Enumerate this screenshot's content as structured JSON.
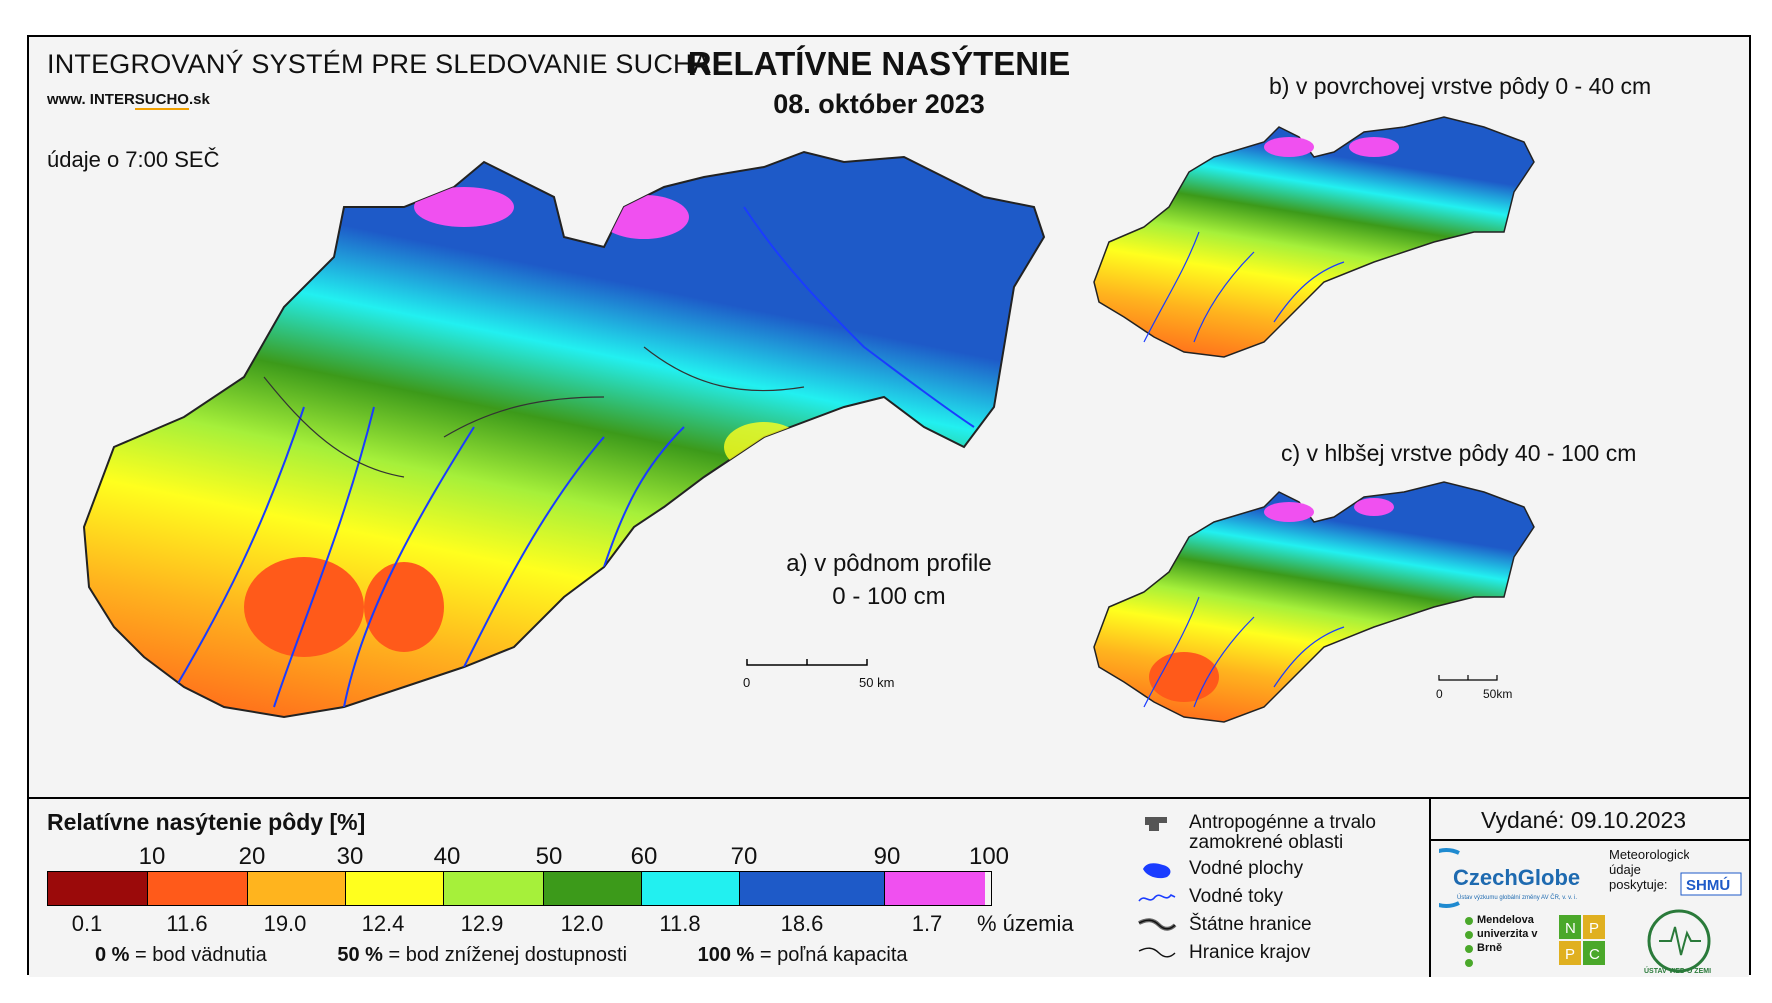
{
  "header": {
    "system_title": "INTEGROVANÝ SYSTÉM PRE SLEDOVANIE SUCHA",
    "website_prefix": "www. INTER",
    "website_underlined": "SUCHO",
    "website_suffix": ".sk",
    "time_info": "údaje o 7:00 SEČ",
    "title": "RELATÍVNE NASÝTENIE",
    "date": "08. október 2023"
  },
  "maps": {
    "a_label_line1": "a) v pôdnom profile",
    "a_label_line2": "0 - 100 cm",
    "b_label": "b) v povrchovej vrstve pôdy 0 - 40 cm",
    "c_label": "c) v hlbšej vrstve pôdy 40 - 100 cm",
    "scale_main": {
      "zero": "0",
      "end": "50 km"
    },
    "scale_small": {
      "zero": "0",
      "end": "50km"
    }
  },
  "legend": {
    "title": "Relatívne nasýtenie pôdy [%]",
    "ticks": [
      "10",
      "20",
      "30",
      "40",
      "50",
      "60",
      "70",
      "90",
      "100"
    ],
    "classes": [
      {
        "color": "#9b0a0a",
        "percent": "0.1"
      },
      {
        "color": "#ff5a1a",
        "percent": "11.6"
      },
      {
        "color": "#ffb41e",
        "percent": "19.0"
      },
      {
        "color": "#ffff1e",
        "percent": "12.4"
      },
      {
        "color": "#a6f03a",
        "percent": "12.9"
      },
      {
        "color": "#3c9a1a",
        "percent": "12.0"
      },
      {
        "color": "#22f0f0",
        "percent": "11.8"
      },
      {
        "color": "#1e5ac8",
        "percent": "18.6"
      },
      {
        "color": "#f050f0",
        "percent": "1.7"
      }
    ],
    "unit_label": "% územia",
    "notes": [
      {
        "value": "0 %",
        "text": "= bod vädnutia"
      },
      {
        "value": "50 %",
        "text": "= bod zníženej dostupnosti"
      },
      {
        "value": "100 %",
        "text": "= poľná kapacita"
      }
    ]
  },
  "symbols": {
    "items": [
      {
        "label": "Antropogénne a trvalo zamokrené oblasti",
        "icon": "urban-area-icon"
      },
      {
        "label": "Vodné plochy",
        "icon": "water-body-icon"
      },
      {
        "label": "Vodné toky",
        "icon": "river-icon"
      },
      {
        "label": "Štátne hranice",
        "icon": "state-border-icon"
      },
      {
        "label": "Hranice krajov",
        "icon": "region-border-icon"
      }
    ]
  },
  "issued": {
    "label": "Vydané: 09.10.2023"
  },
  "logos": {
    "czechglobe": "CzechGlobe",
    "czechglobe_sub": "Ústav výzkumu globální změny AV ČR, v. v. i.",
    "meteo_text": "Meteorologické údaje poskytuje:",
    "shmu": "SHMÚ",
    "mendel": "Mendelova univerzita v Brně",
    "npc_letters": [
      "N",
      "P",
      "P",
      "C"
    ],
    "uvz": "ÚSTAV VIED O ZEMI"
  }
}
